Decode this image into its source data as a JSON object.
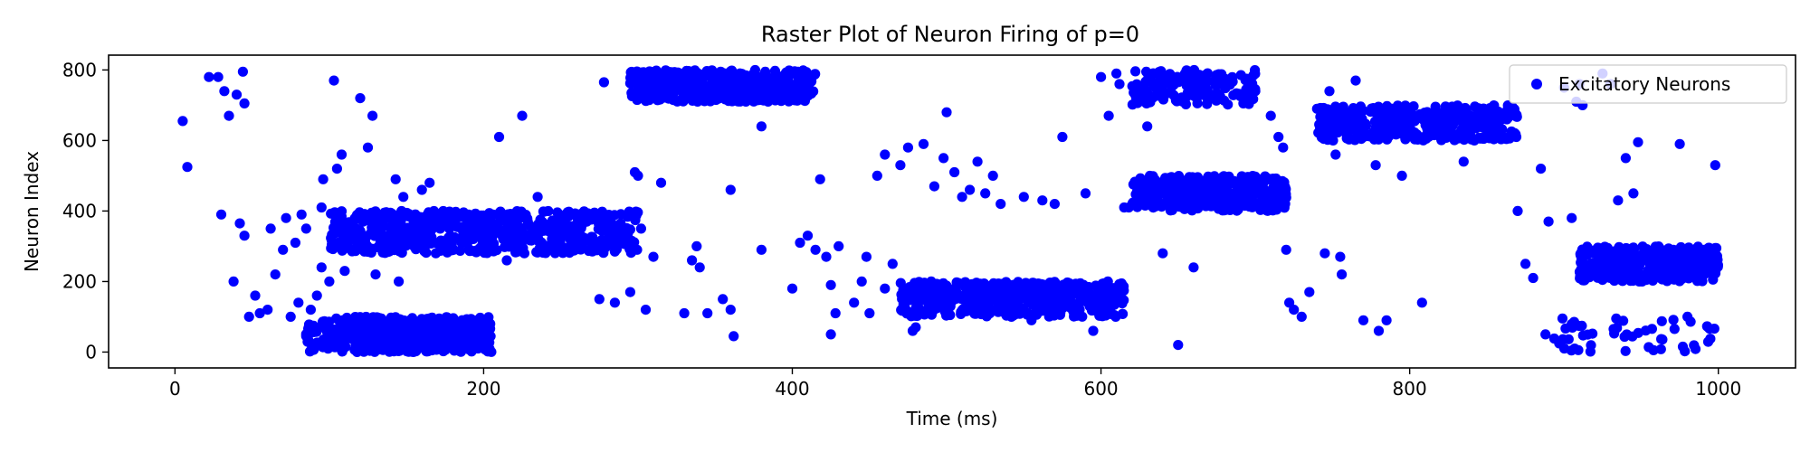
{
  "chart_data": {
    "type": "scatter",
    "title": "Raster Plot of Neuron Firing of p=0",
    "xlabel": "Time (ms)",
    "ylabel": "Neuron Index",
    "xlim": [
      -43,
      1050
    ],
    "ylim": [
      -45,
      842
    ],
    "xticks": [
      0,
      200,
      400,
      600,
      800,
      1000
    ],
    "yticks": [
      0,
      200,
      400,
      600,
      800
    ],
    "grid": false,
    "legend": {
      "position": "top-right",
      "entries": [
        "Excitatory Neurons"
      ]
    },
    "series": [
      {
        "name": "Excitatory Neurons",
        "color": "#0000ff",
        "clusters": [
          {
            "t": [
              85,
              205
            ],
            "n": [
              0,
              100
            ],
            "count": 480
          },
          {
            "t": [
              100,
              300
            ],
            "n": [
              280,
              400
            ],
            "count": 620
          },
          {
            "t": [
              295,
              415
            ],
            "n": [
              710,
              800
            ],
            "count": 460
          },
          {
            "t": [
              470,
              615
            ],
            "n": [
              100,
              200
            ],
            "count": 480
          },
          {
            "t": [
              620,
              720
            ],
            "n": [
              400,
              500
            ],
            "count": 380
          },
          {
            "t": [
              620,
              700
            ],
            "n": [
              700,
              800
            ],
            "count": 160
          },
          {
            "t": [
              740,
              870
            ],
            "n": [
              600,
              700
            ],
            "count": 400
          },
          {
            "t": [
              910,
              1000
            ],
            "n": [
              200,
              300
            ],
            "count": 360
          },
          {
            "t": [
              890,
              1000
            ],
            "n": [
              0,
              100
            ],
            "count": 50
          }
        ],
        "sparse_points": [
          [
            5,
            655
          ],
          [
            8,
            525
          ],
          [
            22,
            780
          ],
          [
            28,
            780
          ],
          [
            32,
            740
          ],
          [
            35,
            670
          ],
          [
            40,
            730
          ],
          [
            44,
            795
          ],
          [
            45,
            705
          ],
          [
            30,
            390
          ],
          [
            38,
            200
          ],
          [
            42,
            365
          ],
          [
            45,
            330
          ],
          [
            48,
            100
          ],
          [
            52,
            160
          ],
          [
            55,
            110
          ],
          [
            60,
            120
          ],
          [
            62,
            350
          ],
          [
            65,
            220
          ],
          [
            70,
            290
          ],
          [
            72,
            380
          ],
          [
            75,
            100
          ],
          [
            78,
            310
          ],
          [
            80,
            140
          ],
          [
            82,
            390
          ],
          [
            85,
            350
          ],
          [
            88,
            120
          ],
          [
            90,
            60
          ],
          [
            92,
            160
          ],
          [
            95,
            240
          ],
          [
            95,
            410
          ],
          [
            96,
            490
          ],
          [
            100,
            200
          ],
          [
            103,
            770
          ],
          [
            105,
            520
          ],
          [
            108,
            560
          ],
          [
            110,
            230
          ],
          [
            112,
            300
          ],
          [
            120,
            720
          ],
          [
            122,
            380
          ],
          [
            125,
            580
          ],
          [
            128,
            670
          ],
          [
            130,
            220
          ],
          [
            143,
            490
          ],
          [
            145,
            200
          ],
          [
            148,
            440
          ],
          [
            160,
            460
          ],
          [
            165,
            480
          ],
          [
            210,
            610
          ],
          [
            225,
            670
          ],
          [
            235,
            440
          ],
          [
            215,
            260
          ],
          [
            275,
            150
          ],
          [
            278,
            765
          ],
          [
            285,
            140
          ],
          [
            295,
            170
          ],
          [
            298,
            510
          ],
          [
            300,
            500
          ],
          [
            302,
            350
          ],
          [
            305,
            120
          ],
          [
            310,
            270
          ],
          [
            315,
            480
          ],
          [
            330,
            110
          ],
          [
            335,
            260
          ],
          [
            338,
            300
          ],
          [
            340,
            240
          ],
          [
            345,
            110
          ],
          [
            355,
            150
          ],
          [
            360,
            120
          ],
          [
            362,
            45
          ],
          [
            360,
            460
          ],
          [
            380,
            640
          ],
          [
            380,
            290
          ],
          [
            400,
            180
          ],
          [
            405,
            310
          ],
          [
            410,
            330
          ],
          [
            415,
            290
          ],
          [
            418,
            490
          ],
          [
            422,
            270
          ],
          [
            425,
            50
          ],
          [
            425,
            190
          ],
          [
            428,
            110
          ],
          [
            430,
            300
          ],
          [
            440,
            140
          ],
          [
            445,
            200
          ],
          [
            448,
            270
          ],
          [
            450,
            110
          ],
          [
            455,
            500
          ],
          [
            460,
            560
          ],
          [
            460,
            180
          ],
          [
            465,
            250
          ],
          [
            470,
            530
          ],
          [
            475,
            580
          ],
          [
            478,
            60
          ],
          [
            480,
            70
          ],
          [
            485,
            590
          ],
          [
            490,
            200
          ],
          [
            492,
            470
          ],
          [
            498,
            550
          ],
          [
            500,
            680
          ],
          [
            505,
            510
          ],
          [
            510,
            440
          ],
          [
            515,
            460
          ],
          [
            520,
            540
          ],
          [
            525,
            450
          ],
          [
            530,
            500
          ],
          [
            535,
            420
          ],
          [
            550,
            440
          ],
          [
            555,
            90
          ],
          [
            562,
            430
          ],
          [
            570,
            420
          ],
          [
            575,
            610
          ],
          [
            590,
            450
          ],
          [
            595,
            60
          ],
          [
            600,
            780
          ],
          [
            605,
            670
          ],
          [
            610,
            790
          ],
          [
            612,
            760
          ],
          [
            615,
            410
          ],
          [
            618,
            410
          ],
          [
            630,
            640
          ],
          [
            640,
            280
          ],
          [
            650,
            20
          ],
          [
            660,
            240
          ],
          [
            700,
            740
          ],
          [
            710,
            670
          ],
          [
            715,
            610
          ],
          [
            718,
            580
          ],
          [
            720,
            290
          ],
          [
            722,
            140
          ],
          [
            725,
            120
          ],
          [
            730,
            100
          ],
          [
            735,
            170
          ],
          [
            740,
            690
          ],
          [
            745,
            280
          ],
          [
            748,
            740
          ],
          [
            752,
            560
          ],
          [
            755,
            270
          ],
          [
            756,
            220
          ],
          [
            765,
            770
          ],
          [
            770,
            90
          ],
          [
            778,
            530
          ],
          [
            780,
            60
          ],
          [
            785,
            90
          ],
          [
            795,
            500
          ],
          [
            808,
            140
          ],
          [
            835,
            540
          ],
          [
            870,
            400
          ],
          [
            875,
            250
          ],
          [
            880,
            210
          ],
          [
            885,
            520
          ],
          [
            888,
            50
          ],
          [
            890,
            370
          ],
          [
            900,
            750
          ],
          [
            905,
            380
          ],
          [
            908,
            710
          ],
          [
            910,
            760
          ],
          [
            912,
            700
          ],
          [
            925,
            790
          ],
          [
            930,
            760
          ],
          [
            935,
            430
          ],
          [
            940,
            550
          ],
          [
            945,
            450
          ],
          [
            948,
            595
          ],
          [
            975,
            590
          ],
          [
            980,
            100
          ],
          [
            998,
            530
          ]
        ]
      }
    ]
  }
}
